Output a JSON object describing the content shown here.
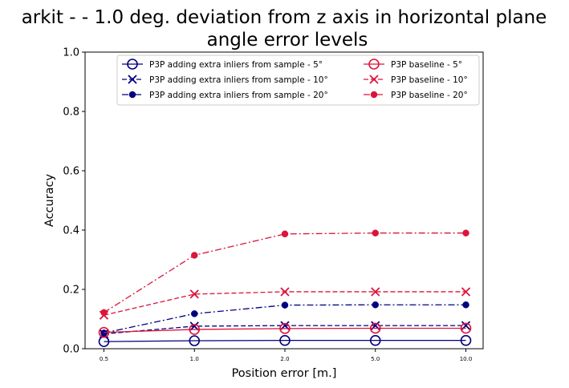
{
  "chart_data": {
    "type": "line",
    "title_line1": "arkit -  - 1.0 deg. deviation from z axis in horizontal plane",
    "title_line2": "angle error levels",
    "xlabel": "Position error [m.]",
    "ylabel": "Accuracy",
    "categories": [
      "0.5",
      "1.0",
      "2.0",
      "5.0",
      "10.0"
    ],
    "yticks": [
      "0.0",
      "0.2",
      "0.4",
      "0.6",
      "0.8",
      "1.0"
    ],
    "ylim": [
      0,
      1
    ],
    "grid": false,
    "legend_position": "top-right",
    "series": [
      {
        "name": "P3P adding extra inliers from sample - 5°",
        "color": "#00007f",
        "dash": "solid",
        "marker": "circle-open",
        "values": [
          0.024,
          0.027,
          0.028,
          0.028,
          0.028
        ]
      },
      {
        "name": "P3P adding extra inliers from sample - 10°",
        "color": "#00007f",
        "dash": "dashed",
        "marker": "x",
        "values": [
          0.05,
          0.076,
          0.078,
          0.078,
          0.078
        ]
      },
      {
        "name": "P3P adding extra inliers from sample - 20°",
        "color": "#00007f",
        "dash": "dashdot",
        "marker": "dot",
        "values": [
          0.053,
          0.118,
          0.147,
          0.148,
          0.148
        ]
      },
      {
        "name": "P3P baseline - 5°",
        "color": "#dc143c",
        "dash": "solid",
        "marker": "circle-open",
        "values": [
          0.055,
          0.065,
          0.068,
          0.069,
          0.069
        ]
      },
      {
        "name": "P3P baseline - 10°",
        "color": "#dc143c",
        "dash": "dashed",
        "marker": "x",
        "values": [
          0.113,
          0.184,
          0.192,
          0.192,
          0.192
        ]
      },
      {
        "name": "P3P baseline - 20°",
        "color": "#dc143c",
        "dash": "dashdot",
        "marker": "dot",
        "values": [
          0.122,
          0.315,
          0.387,
          0.39,
          0.39
        ]
      }
    ]
  }
}
